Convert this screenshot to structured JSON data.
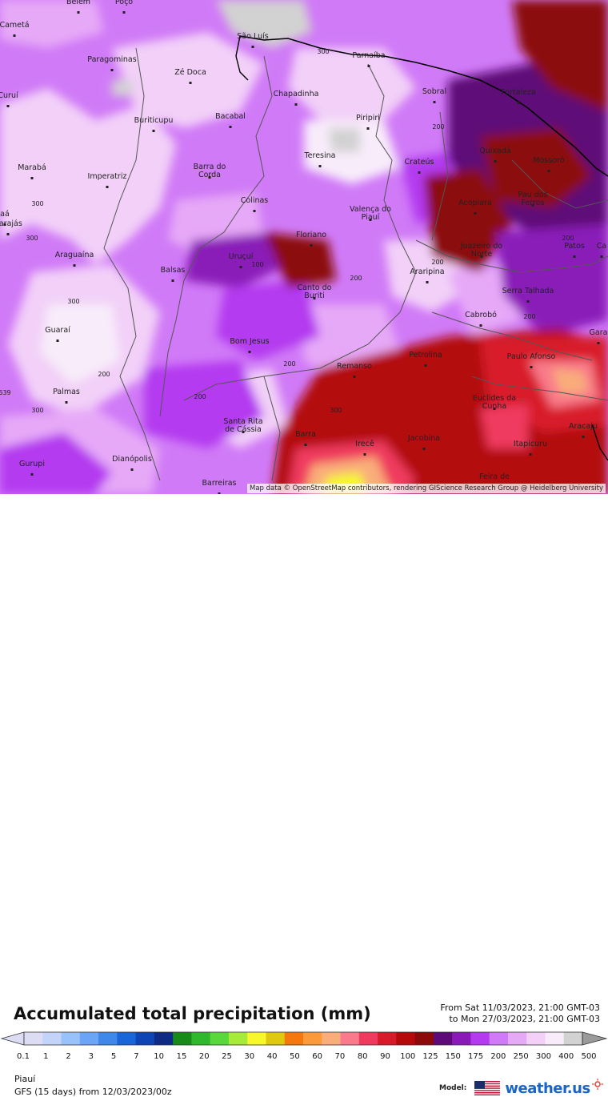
{
  "map": {
    "attribution": "Map data © OpenStreetMap contributors, rendering GIScience Research Group @ Heidelberg University",
    "cities": [
      {
        "name": "Belém"
      },
      {
        "name": "Poço"
      },
      {
        "name": "Cametá"
      },
      {
        "name": "São Luís"
      },
      {
        "name": "Parnaíba"
      },
      {
        "name": "Paragominas"
      },
      {
        "name": "Zé Doca"
      },
      {
        "name": "Fortaleza"
      },
      {
        "name": "Sobral"
      },
      {
        "name": "Chapadinha"
      },
      {
        "name": "Curuí"
      },
      {
        "name": "Buriticupu"
      },
      {
        "name": "Bacabal"
      },
      {
        "name": "Piripiri"
      },
      {
        "name": "Quixadá"
      },
      {
        "name": "Mossoró"
      },
      {
        "name": "Marabá"
      },
      {
        "name": "Imperatriz"
      },
      {
        "name": "Barra do Corda"
      },
      {
        "name": "Teresina"
      },
      {
        "name": "Crateús"
      },
      {
        "name": "Colinas"
      },
      {
        "name": "Pau dos Ferros"
      },
      {
        "name": "Acopiara"
      },
      {
        "name": "Valença do Piauí"
      },
      {
        "name": "Carajás"
      },
      {
        "name": "Floriano"
      },
      {
        "name": "Juazeiro do Norte"
      },
      {
        "name": "Patos"
      },
      {
        "name": "Araguaína"
      },
      {
        "name": "Uruçuí"
      },
      {
        "name": "Balsas"
      },
      {
        "name": "Araripina"
      },
      {
        "name": "Canto do Buriti"
      },
      {
        "name": "Serra Talhada"
      },
      {
        "name": "Cabrobó"
      },
      {
        "name": "Guaraí"
      },
      {
        "name": "Bom Jesus"
      },
      {
        "name": "Paulo Afonso"
      },
      {
        "name": "Petrolina"
      },
      {
        "name": "Remanso"
      },
      {
        "name": "Palmas"
      },
      {
        "name": "Euclides da Cunha"
      },
      {
        "name": "Santa Rita de Cássia"
      },
      {
        "name": "Barra"
      },
      {
        "name": "Aracaju"
      },
      {
        "name": "Irecê"
      },
      {
        "name": "Jacobina"
      },
      {
        "name": "Itapicuru"
      },
      {
        "name": "Gurupi"
      },
      {
        "name": "Dianópolis"
      },
      {
        "name": "Barreiras"
      },
      {
        "name": "Feira de"
      },
      {
        "name": "Gara"
      },
      {
        "name": "Ca"
      },
      {
        "name": "aá"
      }
    ],
    "contour_labels": [
      "200",
      "300",
      "300",
      "200",
      "300",
      "300",
      "200",
      "300",
      "200",
      "200",
      "200",
      "200",
      "300",
      "200",
      "100",
      "639"
    ]
  },
  "legend": {
    "title": "Accumulated total precipitation (mm)",
    "period_from": "From Sat 11/03/2023, 21:00 GMT-03",
    "period_to": "to Mon 27/03/2023, 21:00 GMT-03",
    "ticks": [
      "0.1",
      "1",
      "2",
      "3",
      "5",
      "7",
      "10",
      "15",
      "20",
      "25",
      "30",
      "40",
      "50",
      "60",
      "70",
      "80",
      "90",
      "100",
      "125",
      "150",
      "175",
      "200",
      "250",
      "300",
      "400",
      "500"
    ],
    "colors": [
      "#dcdcf5",
      "#c2d4fa",
      "#98c2fa",
      "#6aa6f5",
      "#3f88ea",
      "#1a66d8",
      "#0f44b4",
      "#0e2a82",
      "#188a1a",
      "#30b82c",
      "#58d83a",
      "#a6ea3a",
      "#f7f72a",
      "#e0c80e",
      "#f5780e",
      "#fa9a3a",
      "#f9ad7a",
      "#f97a8a",
      "#ef3a5e",
      "#d81a2a",
      "#b40a0a",
      "#8c0a0a",
      "#5e0a78",
      "#8a1ab8",
      "#b43af0",
      "#d07af7",
      "#e6a9f7",
      "#f2d0f8",
      "#f8ecfa",
      "#d2d2d2"
    ]
  },
  "footer": {
    "region": "Piauí",
    "model_run": "GFS (15 days) from  12/03/2023/00z",
    "model_label": "Model:",
    "brand_name": "weather.us",
    "flag_icon": "us-flag-icon",
    "sun_icon": "sun-icon"
  }
}
